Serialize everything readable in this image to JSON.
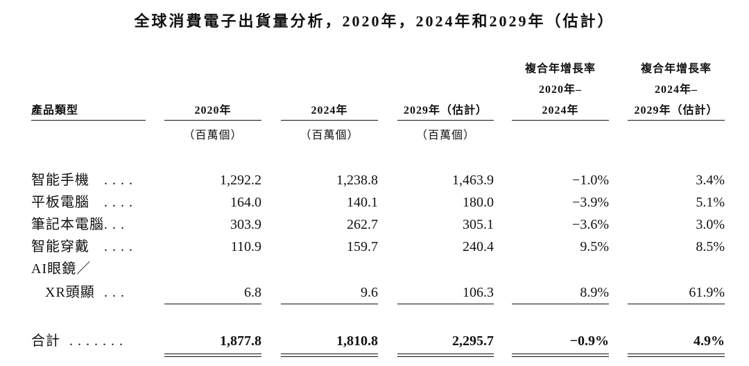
{
  "title": "全球消費電子出貨量分析，2020年，2024年和2029年（估計）",
  "table": {
    "header": [
      [
        "產品類型"
      ],
      [
        "2020年"
      ],
      [
        "2024年"
      ],
      [
        "2029年（估計）"
      ],
      [
        "複合年增長率",
        "2020年–",
        "2024年"
      ],
      [
        "複合年增長率",
        "2024年–",
        "2029年（估計）"
      ]
    ],
    "units": [
      "（百萬個）",
      "（百萬個）",
      "（百萬個）"
    ],
    "rows": [
      {
        "label": [
          "智能手機"
        ],
        "leader": "....",
        "values": [
          "1,292.2",
          "1,238.8",
          "1,463.9",
          "−1.0%",
          "3.4%"
        ]
      },
      {
        "label": [
          "平板電腦"
        ],
        "leader": "....",
        "values": [
          "164.0",
          "140.1",
          "180.0",
          "−3.9%",
          "5.1%"
        ]
      },
      {
        "label": [
          "筆記本電腦"
        ],
        "leader": "...",
        "values": [
          "303.9",
          "262.7",
          "305.1",
          "−3.6%",
          "3.0%"
        ]
      },
      {
        "label": [
          "智能穿戴"
        ],
        "leader": "....",
        "values": [
          "110.9",
          "159.7",
          "240.4",
          "9.5%",
          "8.5%"
        ]
      },
      {
        "label": [
          "AI眼鏡／",
          "XR頭顯"
        ],
        "leader": "...",
        "values": [
          "6.8",
          "9.6",
          "106.3",
          "8.9%",
          "61.9%"
        ]
      }
    ],
    "total": {
      "label": "合計",
      "leader": ".......",
      "values": [
        "1,877.8",
        "1,810.8",
        "2,295.7",
        "−0.9%",
        "4.9%"
      ]
    }
  }
}
